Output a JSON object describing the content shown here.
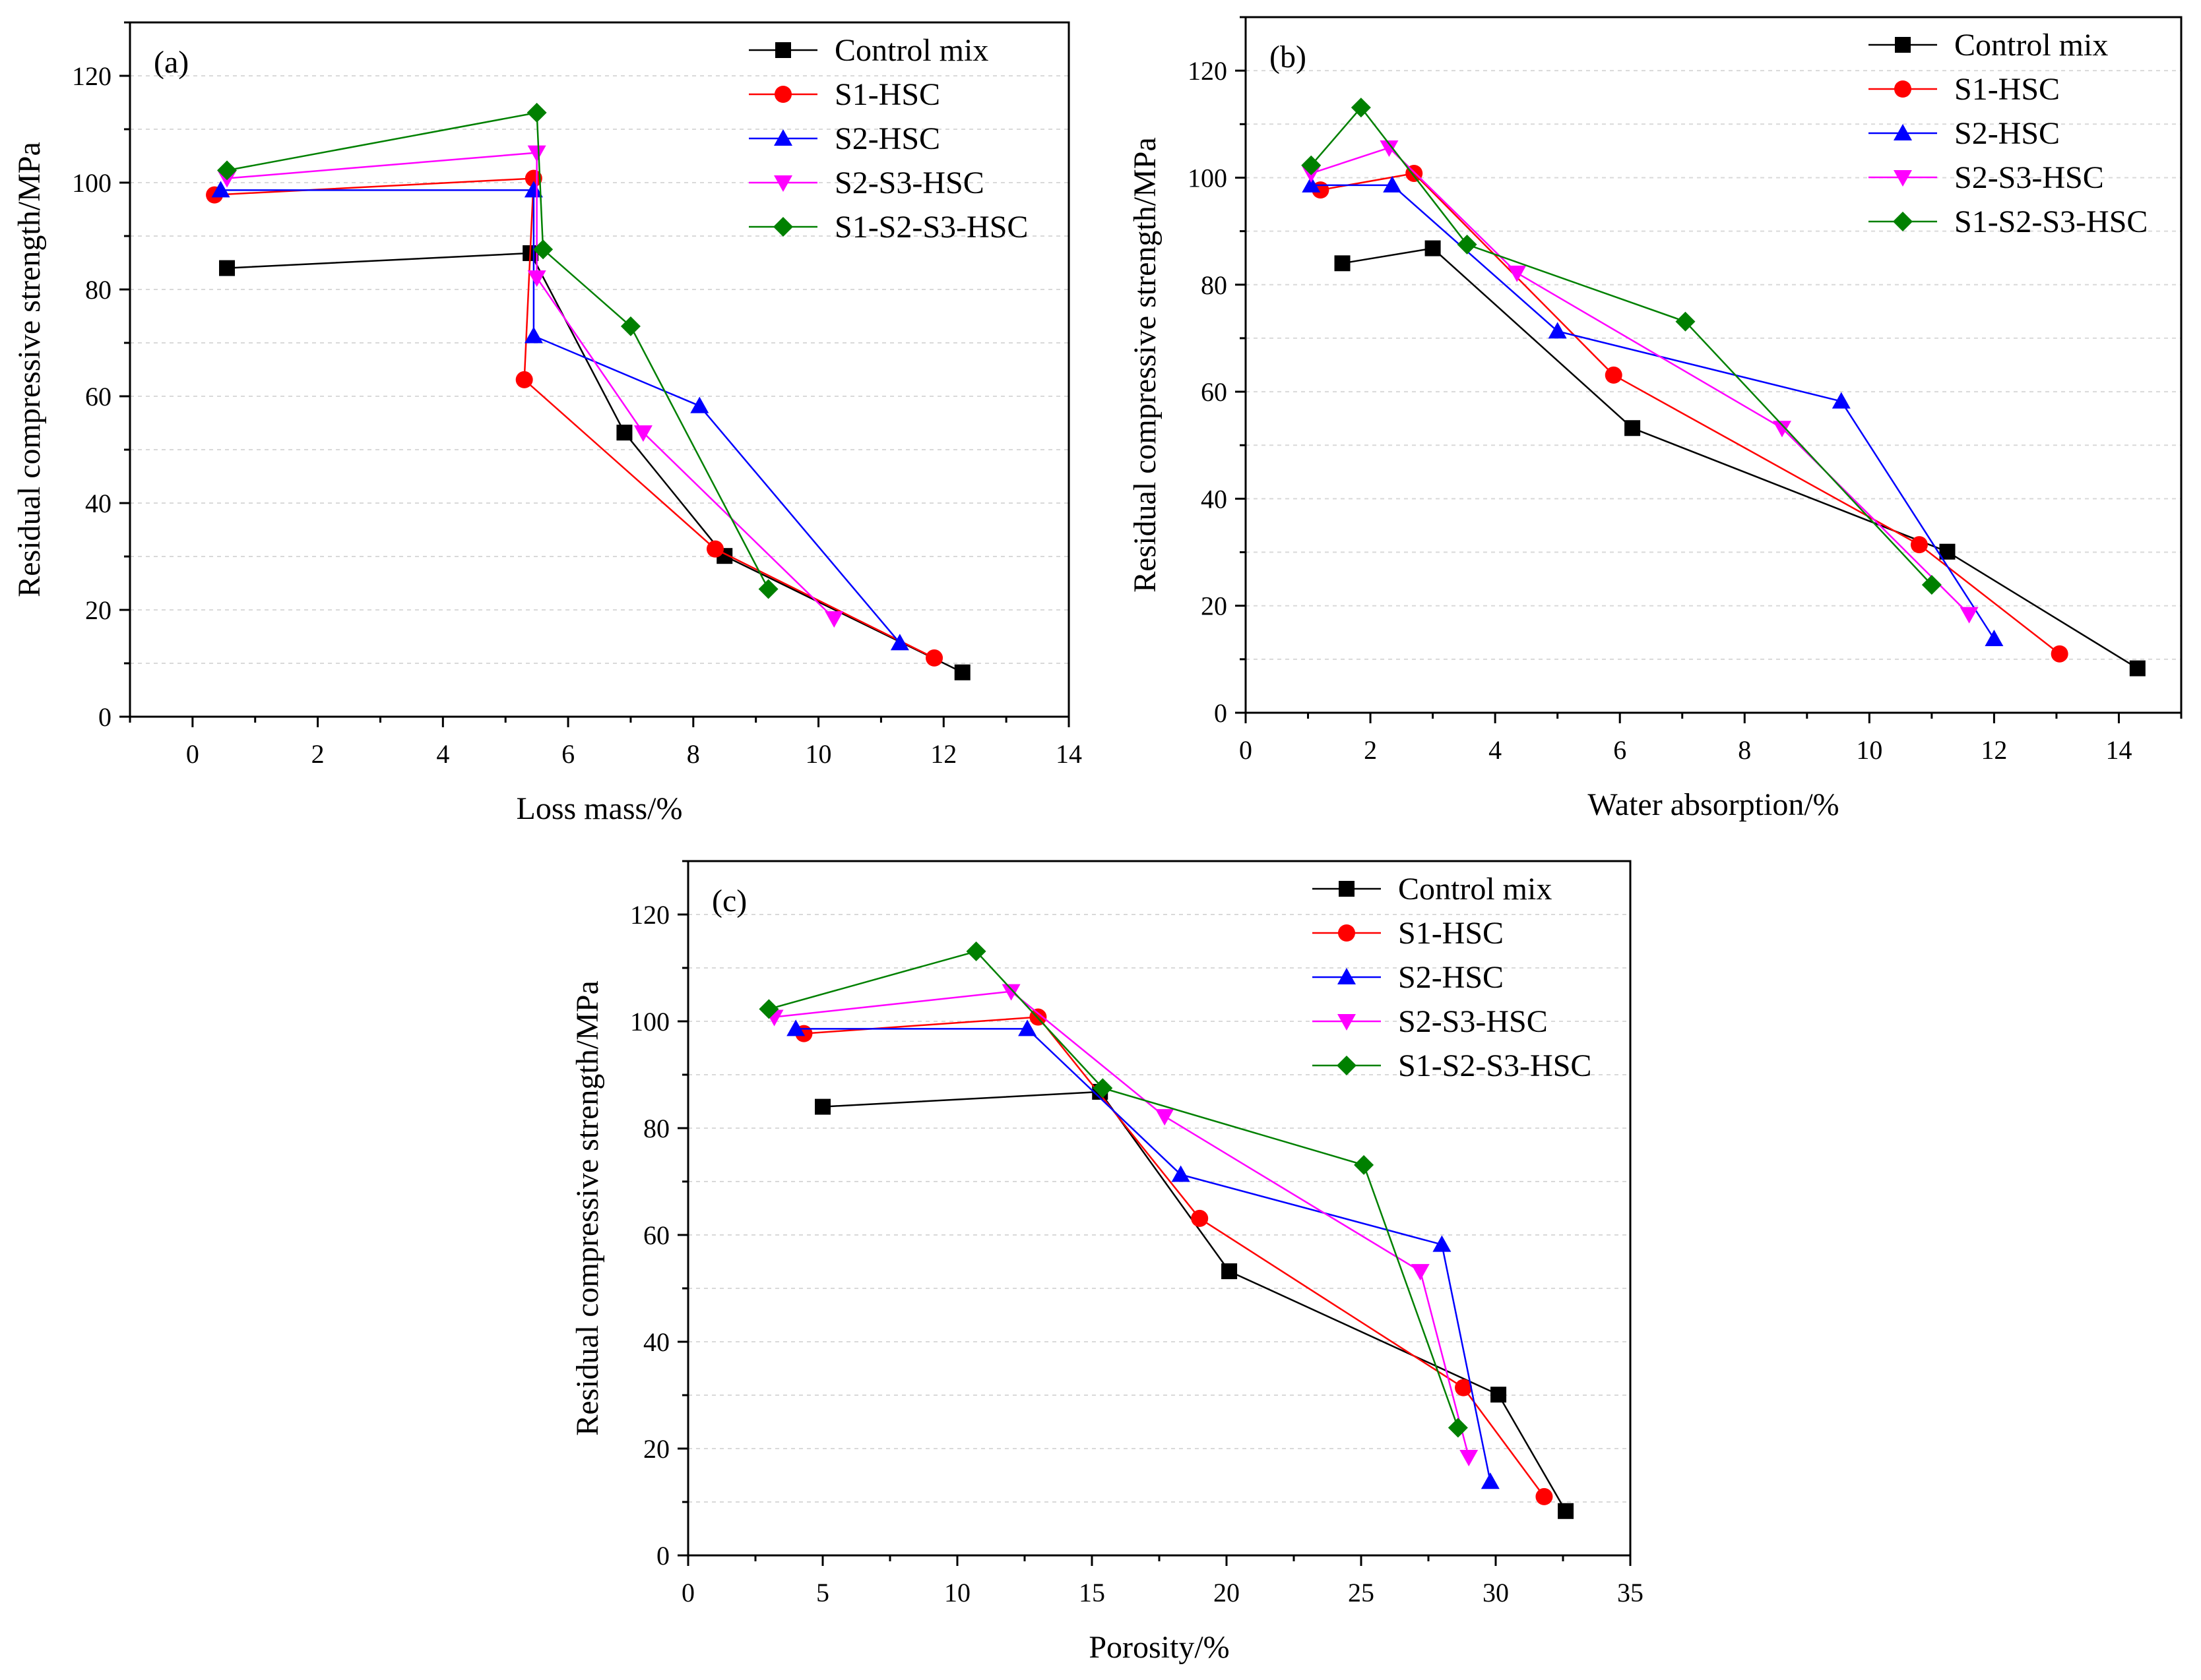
{
  "chart_data": [
    {
      "id": "a",
      "type": "line",
      "panel_label": "(a)",
      "xlabel": "Loss mass/%",
      "ylabel": "Residual compressive strength/MPa",
      "xlim": [
        -1,
        14
      ],
      "ylim": [
        0,
        130
      ],
      "xticks": [
        0,
        2,
        4,
        6,
        8,
        10,
        12,
        14
      ],
      "yticks": [
        0,
        20,
        40,
        60,
        80,
        100,
        120
      ],
      "legend": "top-right",
      "series": [
        {
          "name": "Control mix",
          "color": "#000000",
          "marker": "square",
          "x": [
            0.55,
            5.4,
            6.9,
            8.5,
            12.3
          ],
          "y": [
            84,
            86.8,
            53.2,
            30.1,
            8.3
          ]
        },
        {
          "name": "S1-HSC",
          "color": "#ff0000",
          "marker": "circle",
          "x": [
            0.35,
            5.45,
            5.3,
            8.35,
            11.85
          ],
          "y": [
            97.7,
            100.8,
            63.1,
            31.4,
            11
          ]
        },
        {
          "name": "S2-HSC",
          "color": "#0000ff",
          "marker": "triangle-up",
          "x": [
            0.45,
            5.45,
            5.45,
            8.1,
            11.3
          ],
          "y": [
            98.6,
            98.6,
            71.3,
            58.2,
            13.8
          ]
        },
        {
          "name": "S2-S3-HSC",
          "color": "#ff00ff",
          "marker": "triangle-down",
          "x": [
            0.55,
            5.5,
            5.5,
            7.2,
            10.25
          ],
          "y": [
            100.8,
            105.6,
            82.2,
            53.2,
            18.4
          ]
        },
        {
          "name": "S1-S2-S3-HSC",
          "color": "#008000",
          "marker": "diamond",
          "x": [
            0.55,
            5.5,
            5.6,
            7.0,
            9.2
          ],
          "y": [
            102.3,
            113.1,
            87.5,
            73.1,
            23.9
          ]
        }
      ]
    },
    {
      "id": "b",
      "type": "line",
      "panel_label": "(b)",
      "xlabel": "Water absorption/%",
      "ylabel": "Residual compressive strength/MPa",
      "xlim": [
        0,
        15
      ],
      "ylim": [
        0,
        130
      ],
      "xticks": [
        0,
        2,
        4,
        6,
        8,
        10,
        12,
        14
      ],
      "yticks": [
        0,
        20,
        40,
        60,
        80,
        100,
        120
      ],
      "legend": "top-right",
      "series": [
        {
          "name": "Control mix",
          "color": "#000000",
          "marker": "square",
          "x": [
            1.55,
            3.0,
            6.2,
            11.25,
            14.3
          ],
          "y": [
            84,
            86.8,
            53.2,
            30.1,
            8.3
          ]
        },
        {
          "name": "S1-HSC",
          "color": "#ff0000",
          "marker": "circle",
          "x": [
            1.2,
            2.7,
            5.9,
            10.8,
            13.05
          ],
          "y": [
            97.7,
            100.8,
            63.1,
            31.4,
            11
          ]
        },
        {
          "name": "S2-HSC",
          "color": "#0000ff",
          "marker": "triangle-up",
          "x": [
            1.05,
            2.35,
            5.0,
            9.55,
            12.0
          ],
          "y": [
            98.6,
            98.6,
            71.3,
            58.2,
            13.8
          ]
        },
        {
          "name": "S2-S3-HSC",
          "color": "#ff00ff",
          "marker": "triangle-down",
          "x": [
            1.05,
            2.3,
            4.35,
            8.6,
            11.6
          ],
          "y": [
            100.8,
            105.6,
            82.2,
            53.2,
            18.4
          ]
        },
        {
          "name": "S1-S2-S3-HSC",
          "color": "#008000",
          "marker": "diamond",
          "x": [
            1.05,
            1.85,
            3.55,
            7.05,
            11.0
          ],
          "y": [
            102.3,
            113.1,
            87.5,
            73.1,
            23.9
          ]
        }
      ]
    },
    {
      "id": "c",
      "type": "line",
      "panel_label": "(c)",
      "xlabel": "Porosity/%",
      "ylabel": "Residual compressive strength/MPa",
      "xlim": [
        0,
        35
      ],
      "ylim": [
        0,
        130
      ],
      "xticks": [
        0,
        5,
        10,
        15,
        20,
        25,
        30,
        35
      ],
      "yticks": [
        0,
        20,
        40,
        60,
        80,
        100,
        120
      ],
      "legend": "top-right",
      "series": [
        {
          "name": "Control mix",
          "color": "#000000",
          "marker": "square",
          "x": [
            5.0,
            15.3,
            20.1,
            30.1,
            32.6
          ],
          "y": [
            84,
            86.8,
            53.2,
            30.1,
            8.3
          ]
        },
        {
          "name": "S1-HSC",
          "color": "#ff0000",
          "marker": "circle",
          "x": [
            4.3,
            13.0,
            19.0,
            28.8,
            31.8
          ],
          "y": [
            97.7,
            100.8,
            63.1,
            31.4,
            11
          ]
        },
        {
          "name": "S2-HSC",
          "color": "#0000ff",
          "marker": "triangle-up",
          "x": [
            4.0,
            12.6,
            18.3,
            28.0,
            29.8
          ],
          "y": [
            98.6,
            98.6,
            71.3,
            58.2,
            13.8
          ]
        },
        {
          "name": "S2-S3-HSC",
          "color": "#ff00ff",
          "marker": "triangle-down",
          "x": [
            3.2,
            12.0,
            17.7,
            27.2,
            29.0
          ],
          "y": [
            100.8,
            105.6,
            82.2,
            53.2,
            18.4
          ]
        },
        {
          "name": "S1-S2-S3-HSC",
          "color": "#008000",
          "marker": "diamond",
          "x": [
            3.0,
            10.7,
            15.4,
            25.1,
            28.6
          ],
          "y": [
            102.3,
            113.1,
            87.5,
            73.1,
            23.9
          ]
        }
      ]
    }
  ]
}
